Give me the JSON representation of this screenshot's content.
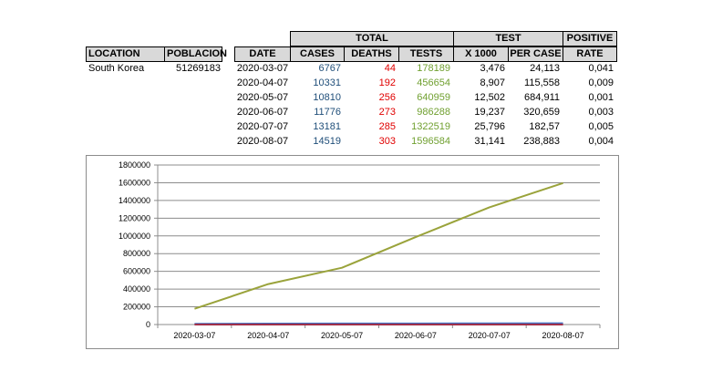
{
  "left_table": {
    "headers": {
      "location": "LOCATION",
      "poblacion": "POBLACION"
    },
    "location": "South Korea",
    "poblacion": "51269183"
  },
  "main_table": {
    "group_headers": {
      "total": "TOTAL",
      "test": "TEST",
      "positive": "POSITIVE"
    },
    "headers": {
      "date": "DATE",
      "cases": "CASES",
      "deaths": "DEATHS",
      "tests": "TESTS",
      "x1000": "X 1000",
      "per_case": "PER CASE",
      "rate": "RATE"
    },
    "rows": [
      {
        "date": "2020-03-07",
        "cases": "6767",
        "deaths": "44",
        "tests": "178189",
        "x1000": "3,476",
        "per_case": "24,113",
        "rate": "0,041"
      },
      {
        "date": "2020-04-07",
        "cases": "10331",
        "deaths": "192",
        "tests": "456654",
        "x1000": "8,907",
        "per_case": "115,558",
        "rate": "0,009"
      },
      {
        "date": "2020-05-07",
        "cases": "10810",
        "deaths": "256",
        "tests": "640959",
        "x1000": "12,502",
        "per_case": "684,911",
        "rate": "0,001"
      },
      {
        "date": "2020-06-07",
        "cases": "11776",
        "deaths": "273",
        "tests": "986288",
        "x1000": "19,237",
        "per_case": "320,659",
        "rate": "0,003"
      },
      {
        "date": "2020-07-07",
        "cases": "13181",
        "deaths": "285",
        "tests": "1322519",
        "x1000": "25,796",
        "per_case": "182,57",
        "rate": "0,005"
      },
      {
        "date": "2020-08-07",
        "cases": "14519",
        "deaths": "303",
        "tests": "1596584",
        "x1000": "31,141",
        "per_case": "238,883",
        "rate": "0,004"
      }
    ]
  },
  "colors": {
    "cases": "#1f4e79",
    "deaths": "#e00000",
    "tests": "#70a030",
    "header_bg": "#d9d9d9"
  },
  "chart_data": {
    "type": "line",
    "categories": [
      "2020-03-07",
      "2020-04-07",
      "2020-05-07",
      "2020-06-07",
      "2020-07-07",
      "2020-08-07"
    ],
    "ylim": [
      0,
      1800000
    ],
    "yticks": [
      "0",
      "200000",
      "400000",
      "600000",
      "800000",
      "1000000",
      "1200000",
      "1400000",
      "1600000",
      "1800000"
    ],
    "grid": true,
    "series": [
      {
        "key": "tests",
        "color": "#9aa33b",
        "values": [
          178189,
          456654,
          640959,
          986288,
          1322519,
          1596584
        ]
      },
      {
        "key": "cases",
        "color": "#4472c4",
        "values": [
          6767,
          10331,
          10810,
          11776,
          13181,
          14519
        ]
      },
      {
        "key": "deaths",
        "color": "#a0304a",
        "values": [
          44,
          192,
          256,
          273,
          285,
          303
        ]
      }
    ]
  }
}
